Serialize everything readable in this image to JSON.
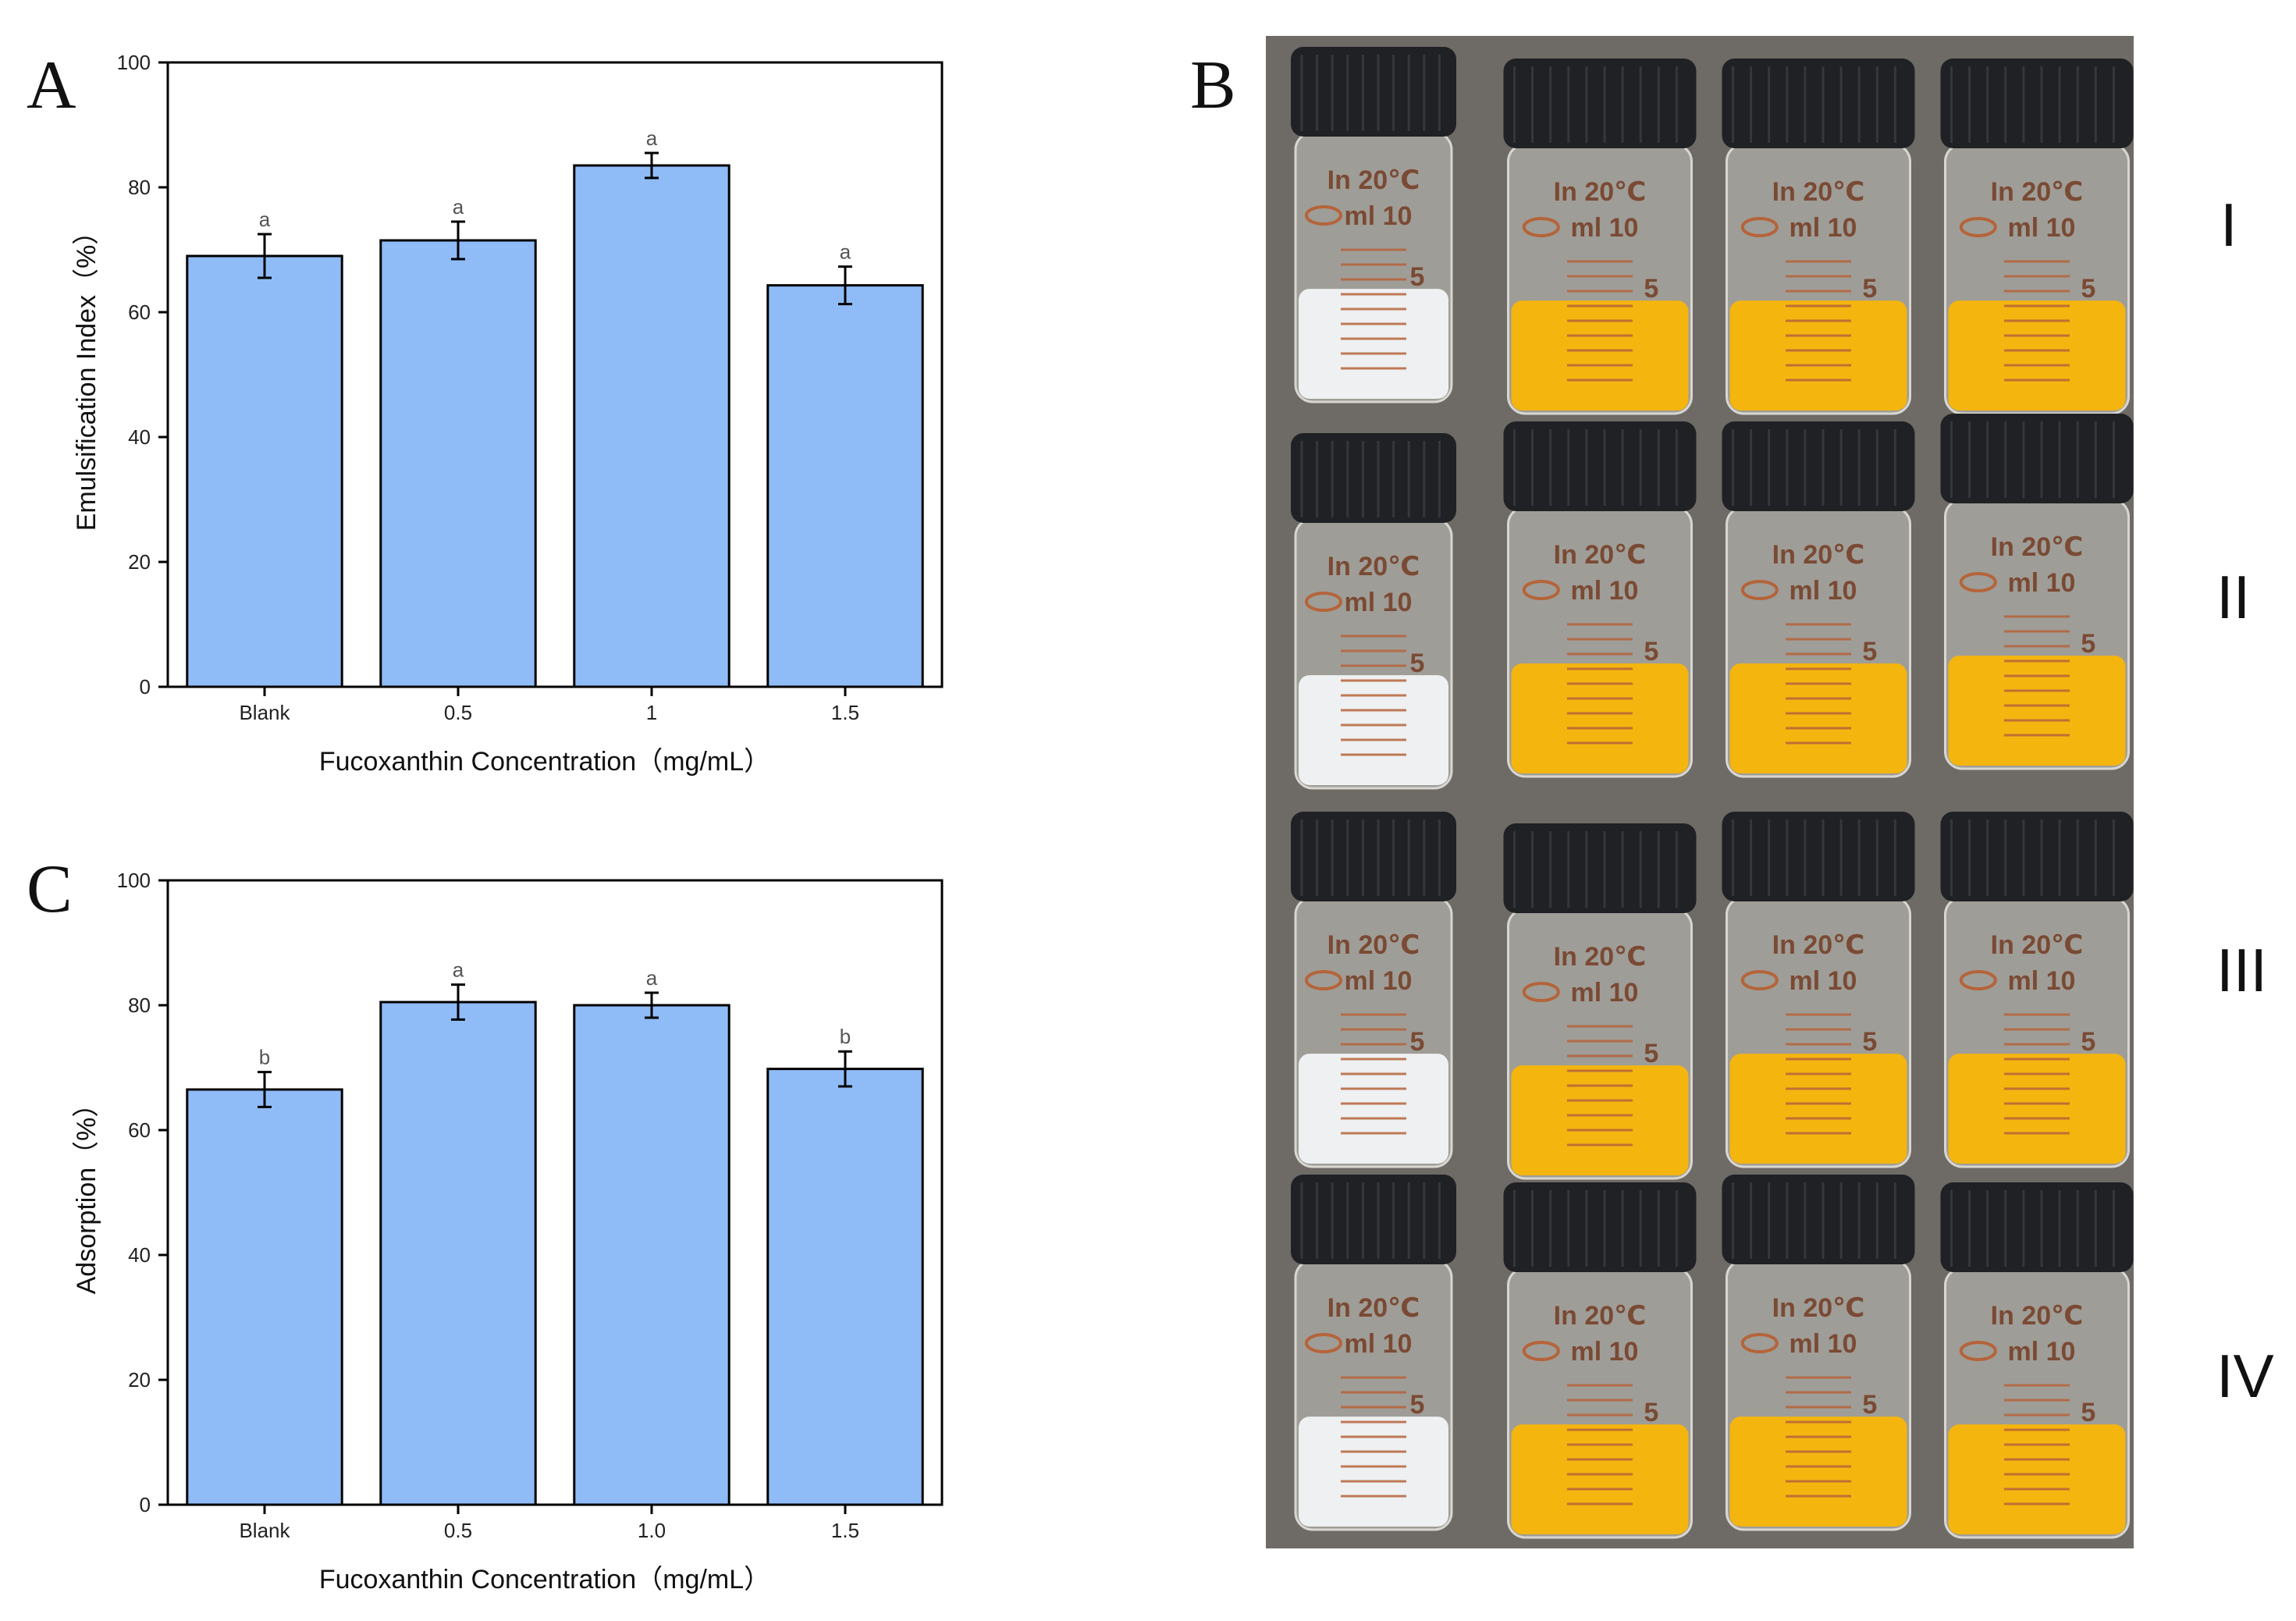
{
  "panels": {
    "A": "A",
    "B": "B",
    "C": "C"
  },
  "chart_data": [
    {
      "id": "A",
      "type": "bar",
      "title": "",
      "xlabel": "Fucoxanthin Concentration（mg/mL）",
      "ylabel": "Emulsification Index（%）",
      "categories": [
        "Blank",
        "0.5",
        "1",
        "1.5"
      ],
      "values": [
        69,
        71.5,
        83.5,
        64.3
      ],
      "errors": [
        3.5,
        3.0,
        2.0,
        3.0
      ],
      "significance": [
        "a",
        "a",
        "a",
        "a"
      ],
      "ylim": [
        0,
        100
      ],
      "yticks": [
        "0",
        "20",
        "40",
        "60",
        "80",
        "100"
      ],
      "bar_color": "#8fbcf7"
    },
    {
      "id": "C",
      "type": "bar",
      "title": "",
      "xlabel": "Fucoxanthin Concentration（mg/mL）",
      "ylabel": "Adsorption（%）",
      "categories": [
        "Blank",
        "0.5",
        "1.0",
        "1.5"
      ],
      "values": [
        66.5,
        80.5,
        80,
        69.8
      ],
      "errors": [
        2.8,
        2.8,
        2.0,
        2.8
      ],
      "significance": [
        "b",
        "a",
        "a",
        "b"
      ],
      "ylim": [
        0,
        100
      ],
      "yticks": [
        "0",
        "20",
        "40",
        "60",
        "80",
        "100"
      ],
      "bar_color": "#8fbcf7"
    }
  ],
  "photo": {
    "row_labels": [
      "I",
      "II",
      "III",
      "IV"
    ],
    "vial_text_temp": "In 20℃",
    "vial_text_volume": "ml 10",
    "vial_text_mark": "5",
    "colors": {
      "background": "#6e6a66",
      "cap": "#1f2124",
      "white_emulsion": "#eef0f2",
      "yellow_emulsion": "#f5b50f",
      "grad_marks": "#b5643a"
    }
  }
}
